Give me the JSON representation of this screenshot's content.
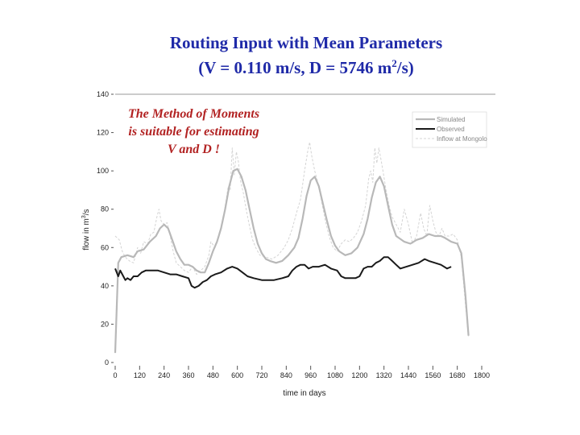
{
  "title": {
    "line1": "Routing Input with Mean Parameters",
    "line2_prefix": "(V = 0.110 m/s, D = 5746 m",
    "line2_sup": "2",
    "line2_suffix": "/s)"
  },
  "annotation": {
    "line1": "The Method of  Moments",
    "line2": "is suitable for estimating",
    "line3": "V and D !"
  },
  "colors": {
    "title": "#1f2aa8",
    "annotation": "#b22222",
    "simulated": "#b8b8b8",
    "observed": "#1a1a1a",
    "inflow": "#d4d4d4"
  },
  "chart_data": {
    "type": "line",
    "xlabel": "time in days",
    "ylabel_prefix": "flow in m",
    "ylabel_sup": "3",
    "ylabel_suffix": "/s",
    "xlim": [
      0,
      1800
    ],
    "ylim": [
      0,
      140
    ],
    "xticks": [
      0,
      120,
      240,
      360,
      480,
      600,
      720,
      840,
      960,
      1080,
      1200,
      1320,
      1440,
      1560,
      1680,
      1800
    ],
    "yticks": [
      0,
      20,
      40,
      60,
      80,
      100,
      120,
      140
    ],
    "legend_position": "top-right",
    "series": [
      {
        "name": "Simulated",
        "color": "#b8b8b8",
        "points": [
          [
            0,
            5
          ],
          [
            15,
            52
          ],
          [
            30,
            55
          ],
          [
            60,
            56
          ],
          [
            90,
            55
          ],
          [
            110,
            58
          ],
          [
            140,
            59
          ],
          [
            170,
            63
          ],
          [
            200,
            66
          ],
          [
            220,
            70
          ],
          [
            240,
            72
          ],
          [
            260,
            70
          ],
          [
            280,
            64
          ],
          [
            300,
            58
          ],
          [
            320,
            54
          ],
          [
            340,
            51
          ],
          [
            360,
            51
          ],
          [
            380,
            50
          ],
          [
            400,
            48
          ],
          [
            420,
            47
          ],
          [
            440,
            47
          ],
          [
            460,
            52
          ],
          [
            480,
            58
          ],
          [
            500,
            63
          ],
          [
            520,
            70
          ],
          [
            540,
            80
          ],
          [
            560,
            92
          ],
          [
            580,
            100
          ],
          [
            600,
            101
          ],
          [
            620,
            97
          ],
          [
            640,
            90
          ],
          [
            660,
            80
          ],
          [
            680,
            70
          ],
          [
            700,
            62
          ],
          [
            720,
            57
          ],
          [
            740,
            54
          ],
          [
            760,
            53
          ],
          [
            790,
            52
          ],
          [
            820,
            53
          ],
          [
            850,
            56
          ],
          [
            880,
            60
          ],
          [
            900,
            65
          ],
          [
            920,
            75
          ],
          [
            940,
            87
          ],
          [
            960,
            95
          ],
          [
            980,
            97
          ],
          [
            1000,
            92
          ],
          [
            1020,
            83
          ],
          [
            1040,
            74
          ],
          [
            1060,
            66
          ],
          [
            1080,
            61
          ],
          [
            1100,
            58
          ],
          [
            1130,
            56
          ],
          [
            1160,
            57
          ],
          [
            1190,
            60
          ],
          [
            1220,
            67
          ],
          [
            1240,
            75
          ],
          [
            1260,
            86
          ],
          [
            1280,
            94
          ],
          [
            1300,
            97
          ],
          [
            1320,
            92
          ],
          [
            1340,
            82
          ],
          [
            1360,
            72
          ],
          [
            1380,
            66
          ],
          [
            1420,
            63
          ],
          [
            1450,
            62
          ],
          [
            1480,
            64
          ],
          [
            1510,
            65
          ],
          [
            1540,
            67
          ],
          [
            1570,
            66
          ],
          [
            1600,
            66
          ],
          [
            1620,
            65
          ],
          [
            1650,
            63
          ],
          [
            1680,
            62
          ],
          [
            1700,
            57
          ],
          [
            1720,
            35
          ],
          [
            1735,
            14
          ]
        ]
      },
      {
        "name": "Observed",
        "color": "#1a1a1a",
        "points": [
          [
            0,
            49
          ],
          [
            15,
            45
          ],
          [
            25,
            48
          ],
          [
            40,
            45
          ],
          [
            50,
            43
          ],
          [
            60,
            44
          ],
          [
            75,
            43
          ],
          [
            90,
            45
          ],
          [
            110,
            45
          ],
          [
            130,
            47
          ],
          [
            150,
            48
          ],
          [
            170,
            48
          ],
          [
            190,
            48
          ],
          [
            210,
            48
          ],
          [
            240,
            47
          ],
          [
            270,
            46
          ],
          [
            300,
            46
          ],
          [
            330,
            45
          ],
          [
            360,
            44
          ],
          [
            375,
            40
          ],
          [
            390,
            39
          ],
          [
            410,
            40
          ],
          [
            430,
            42
          ],
          [
            450,
            43
          ],
          [
            470,
            45
          ],
          [
            490,
            46
          ],
          [
            520,
            47
          ],
          [
            550,
            49
          ],
          [
            575,
            50
          ],
          [
            600,
            49
          ],
          [
            625,
            47
          ],
          [
            650,
            45
          ],
          [
            680,
            44
          ],
          [
            720,
            43
          ],
          [
            780,
            43
          ],
          [
            820,
            44
          ],
          [
            850,
            45
          ],
          [
            870,
            48
          ],
          [
            890,
            50
          ],
          [
            910,
            51
          ],
          [
            930,
            51
          ],
          [
            950,
            49
          ],
          [
            970,
            50
          ],
          [
            1000,
            50
          ],
          [
            1030,
            51
          ],
          [
            1060,
            49
          ],
          [
            1090,
            48
          ],
          [
            1110,
            45
          ],
          [
            1130,
            44
          ],
          [
            1180,
            44
          ],
          [
            1200,
            45
          ],
          [
            1220,
            49
          ],
          [
            1240,
            50
          ],
          [
            1260,
            50
          ],
          [
            1280,
            52
          ],
          [
            1300,
            53
          ],
          [
            1320,
            55
          ],
          [
            1340,
            55
          ],
          [
            1360,
            53
          ],
          [
            1380,
            51
          ],
          [
            1400,
            49
          ],
          [
            1430,
            50
          ],
          [
            1460,
            51
          ],
          [
            1490,
            52
          ],
          [
            1520,
            54
          ],
          [
            1540,
            53
          ],
          [
            1570,
            52
          ],
          [
            1600,
            51
          ],
          [
            1630,
            49
          ],
          [
            1650,
            50
          ]
        ]
      },
      {
        "name": "Inflow at Mongolo",
        "color": "#d4d4d4",
        "points": [
          [
            0,
            66
          ],
          [
            20,
            64
          ],
          [
            35,
            58
          ],
          [
            50,
            55
          ],
          [
            70,
            53
          ],
          [
            90,
            52
          ],
          [
            110,
            60
          ],
          [
            125,
            57
          ],
          [
            140,
            63
          ],
          [
            160,
            62
          ],
          [
            175,
            67
          ],
          [
            190,
            68
          ],
          [
            205,
            76
          ],
          [
            215,
            80
          ],
          [
            225,
            74
          ],
          [
            240,
            72
          ],
          [
            255,
            73
          ],
          [
            270,
            66
          ],
          [
            285,
            58
          ],
          [
            300,
            52
          ],
          [
            320,
            50
          ],
          [
            340,
            48
          ],
          [
            360,
            47
          ],
          [
            380,
            50
          ],
          [
            400,
            46
          ],
          [
            420,
            48
          ],
          [
            440,
            50
          ],
          [
            460,
            56
          ],
          [
            470,
            63
          ],
          [
            490,
            60
          ],
          [
            510,
            67
          ],
          [
            530,
            75
          ],
          [
            545,
            85
          ],
          [
            555,
            92
          ],
          [
            565,
            90
          ],
          [
            575,
            112
          ],
          [
            585,
            98
          ],
          [
            595,
            110
          ],
          [
            605,
            105
          ],
          [
            615,
            95
          ],
          [
            630,
            88
          ],
          [
            645,
            79
          ],
          [
            660,
            71
          ],
          [
            675,
            64
          ],
          [
            690,
            60
          ],
          [
            710,
            56
          ],
          [
            740,
            55
          ],
          [
            770,
            54
          ],
          [
            800,
            56
          ],
          [
            830,
            60
          ],
          [
            850,
            64
          ],
          [
            870,
            70
          ],
          [
            890,
            78
          ],
          [
            910,
            85
          ],
          [
            930,
            100
          ],
          [
            945,
            110
          ],
          [
            955,
            115
          ],
          [
            965,
            108
          ],
          [
            980,
            100
          ],
          [
            995,
            94
          ],
          [
            1010,
            86
          ],
          [
            1030,
            75
          ],
          [
            1050,
            66
          ],
          [
            1070,
            60
          ],
          [
            1090,
            58
          ],
          [
            1110,
            62
          ],
          [
            1130,
            64
          ],
          [
            1150,
            63
          ],
          [
            1170,
            65
          ],
          [
            1190,
            68
          ],
          [
            1210,
            74
          ],
          [
            1230,
            82
          ],
          [
            1245,
            96
          ],
          [
            1255,
            100
          ],
          [
            1265,
            94
          ],
          [
            1275,
            112
          ],
          [
            1285,
            104
          ],
          [
            1295,
            112
          ],
          [
            1305,
            106
          ],
          [
            1315,
            100
          ],
          [
            1330,
            90
          ],
          [
            1345,
            82
          ],
          [
            1360,
            76
          ],
          [
            1380,
            72
          ],
          [
            1400,
            68
          ],
          [
            1420,
            80
          ],
          [
            1440,
            72
          ],
          [
            1460,
            62
          ],
          [
            1480,
            66
          ],
          [
            1500,
            78
          ],
          [
            1515,
            70
          ],
          [
            1530,
            66
          ],
          [
            1545,
            82
          ],
          [
            1560,
            74
          ],
          [
            1575,
            68
          ],
          [
            1590,
            66
          ],
          [
            1605,
            70
          ],
          [
            1620,
            66
          ],
          [
            1640,
            66
          ],
          [
            1660,
            67
          ],
          [
            1680,
            64
          ],
          [
            1700,
            55
          ],
          [
            1720,
            30
          ],
          [
            1735,
            13
          ]
        ]
      }
    ]
  }
}
